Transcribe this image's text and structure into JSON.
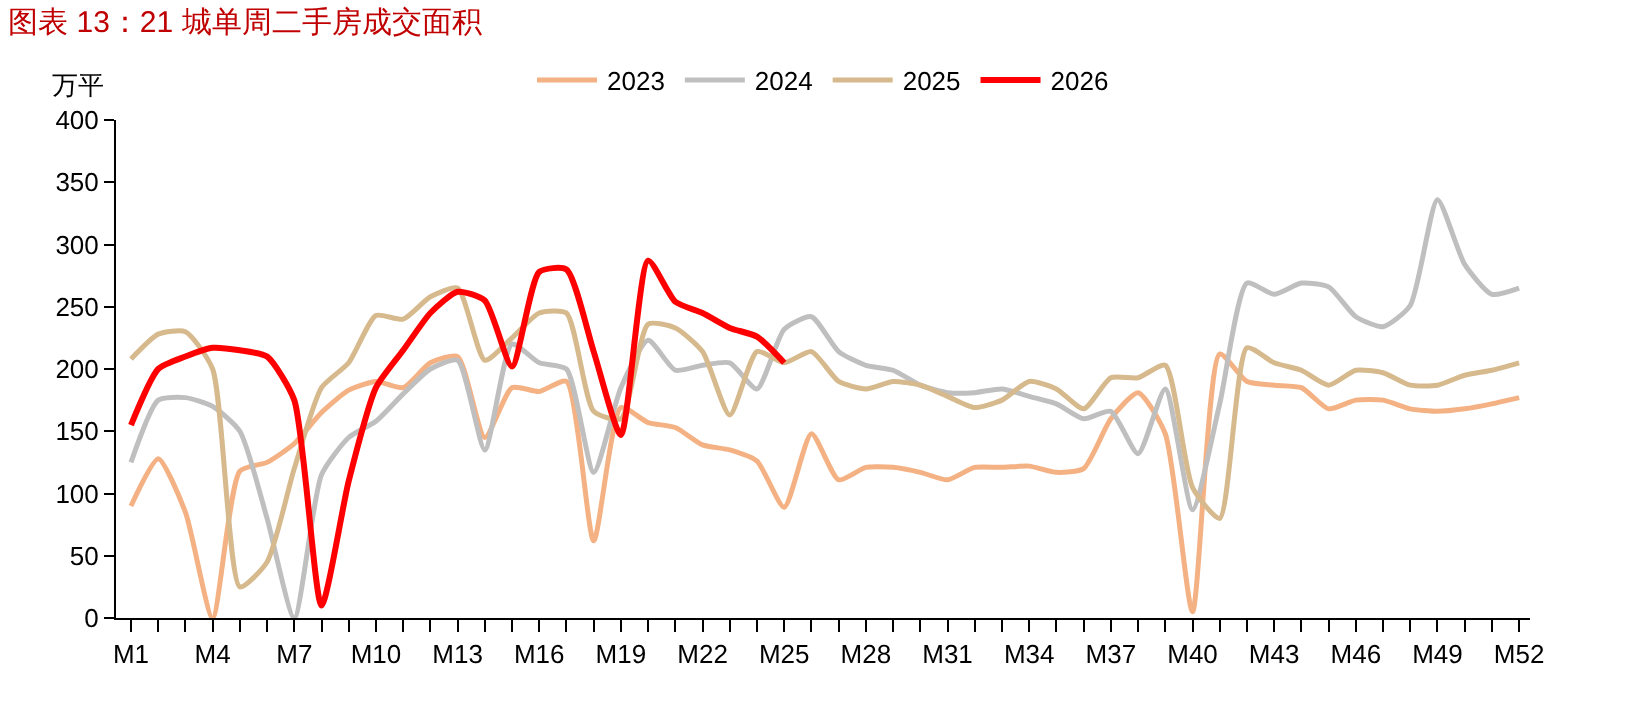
{
  "chart_data": {
    "type": "line",
    "title": "图表 13：21 城单周二手房成交面积",
    "ylabel": "万平",
    "categories": [
      "M1",
      null,
      null,
      "M4",
      null,
      null,
      "M7",
      null,
      null,
      "M10",
      null,
      null,
      "M13",
      null,
      null,
      "M16",
      null,
      null,
      "M19",
      null,
      null,
      "M22",
      null,
      null,
      "M25",
      null,
      null,
      "M28",
      null,
      null,
      "M31",
      null,
      null,
      "M34",
      null,
      null,
      "M37",
      null,
      null,
      "M40",
      null,
      null,
      "M43",
      null,
      null,
      "M46",
      null,
      null,
      "M49",
      null,
      null,
      "M52"
    ],
    "series": [
      {
        "name": "2023",
        "color": "#f4b183",
        "values": [
          90,
          128,
          85,
          0,
          118,
          125,
          140,
          165,
          183,
          190,
          185,
          205,
          210,
          145,
          185,
          182,
          190,
          62,
          169,
          157,
          153,
          139,
          135,
          126,
          89,
          148,
          111,
          121,
          121,
          117,
          111,
          121,
          121,
          122,
          117,
          120,
          160,
          181,
          148,
          5,
          212,
          190,
          187,
          185,
          168,
          175,
          175,
          168,
          166,
          168,
          172,
          177
        ]
      },
      {
        "name": "2024",
        "color": "#bfbfbf",
        "values": [
          125,
          175,
          177,
          170,
          150,
          80,
          0,
          115,
          145,
          158,
          180,
          200,
          207,
          135,
          220,
          205,
          200,
          117,
          185,
          223,
          199,
          203,
          205,
          184,
          232,
          242,
          214,
          203,
          199,
          187,
          181,
          181,
          184,
          178,
          172,
          160,
          166,
          132,
          184,
          87,
          172,
          269,
          260,
          269,
          266,
          242,
          234,
          251,
          336,
          284,
          260,
          265
        ]
      },
      {
        "name": "2025",
        "color": "#d6b98c",
        "values": [
          208,
          228,
          230,
          200,
          25,
          45,
          120,
          185,
          205,
          243,
          240,
          258,
          265,
          207,
          225,
          245,
          245,
          166,
          160,
          236,
          233,
          214,
          163,
          214,
          205,
          214,
          190,
          184,
          190,
          187,
          178,
          169,
          175,
          190,
          184,
          168,
          193,
          193,
          203,
          105,
          80,
          217,
          205,
          199,
          187,
          199,
          197,
          187,
          187,
          195,
          199,
          205
        ]
      },
      {
        "name": "2026",
        "color": "#ff0000",
        "values": [
          155,
          200,
          210,
          217,
          215,
          210,
          175,
          10,
          110,
          185,
          215,
          245,
          262,
          255,
          202,
          278,
          280,
          214,
          147,
          287,
          254,
          245,
          233,
          226,
          205,
          null,
          null,
          null,
          null,
          null,
          null,
          null,
          null,
          null,
          null,
          null,
          null,
          null,
          null,
          null,
          null,
          null,
          null,
          null,
          null,
          null,
          null,
          null,
          null,
          null,
          null,
          null
        ]
      }
    ],
    "ylim": [
      0,
      400
    ],
    "yticks": [
      0,
      50,
      100,
      150,
      200,
      250,
      300,
      350,
      400
    ],
    "legend": "top",
    "marker": "none",
    "line_style": "solid"
  }
}
